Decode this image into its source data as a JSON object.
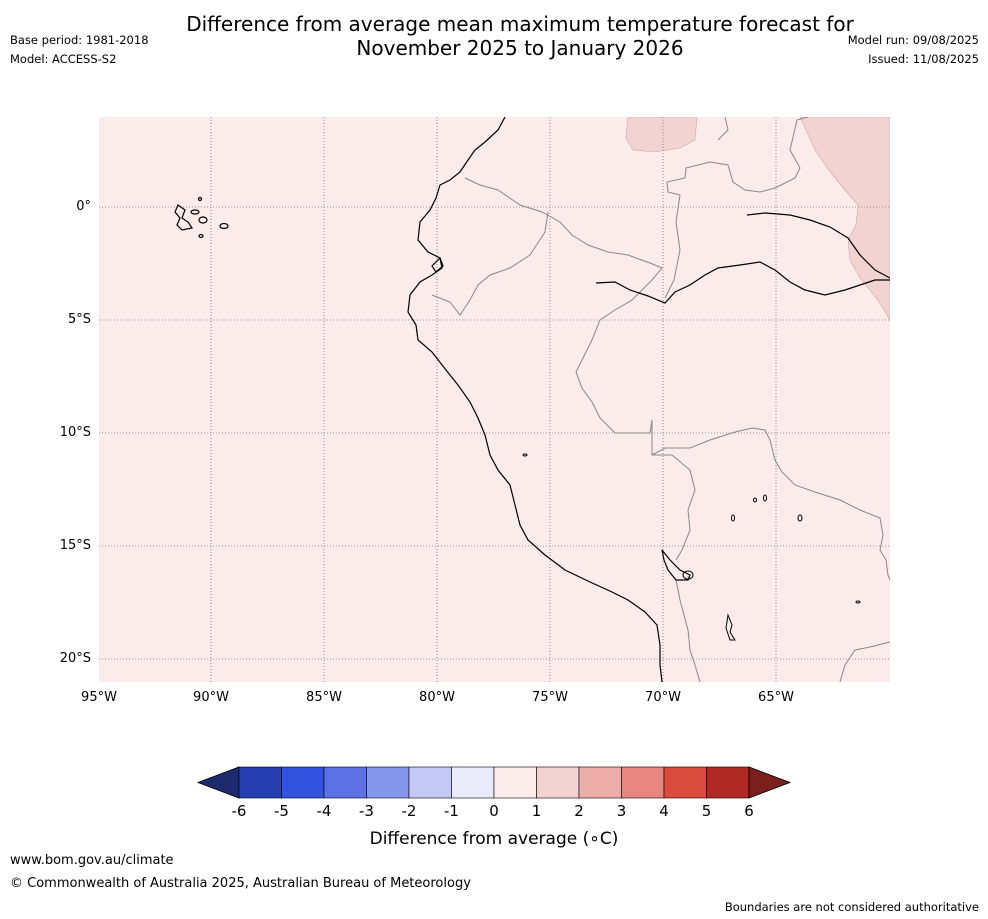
{
  "header": {
    "title_line1": "Difference from average mean maximum temperature forecast for",
    "title_line2": "November 2025 to January 2026",
    "base_period": "Base period: 1981-2018",
    "model": "Model: ACCESS-S2",
    "model_run": "Model run: 09/08/2025",
    "issued": "Issued: 11/08/2025"
  },
  "map": {
    "region": "Western South America (Ecuador, Peru, western Brazil, Bolivia)",
    "background_anomaly_bin": "0 to 1",
    "highlighted_anomaly_bin": "1 to 2",
    "latitude_labels": [
      "0°",
      "5°S",
      "10°S",
      "15°S",
      "20°S"
    ],
    "longitude_labels": [
      "95°W",
      "90°W",
      "85°W",
      "80°W",
      "75°W",
      "70°W",
      "65°W"
    ]
  },
  "colorbar": {
    "title": "Difference from average (∘C)",
    "ticks": [
      "-6",
      "-5",
      "-4",
      "-3",
      "-2",
      "-1",
      "0",
      "1",
      "2",
      "3",
      "4",
      "5",
      "6"
    ],
    "colors": {
      "lt_-6": "#1e2a6e",
      "-6_-5": "#263fb0",
      "-5_-4": "#3352e0",
      "-4_-3": "#5b71e4",
      "-3_-2": "#8497ec",
      "-2_-1": "#c3c9f4",
      "-1_0": "#e9ebfb",
      "0_1": "#fbebea",
      "1_2": "#f2d3d1",
      "2_3": "#eeaca9",
      "3_4": "#e8877f",
      "4_5": "#d94b3c",
      "5_6": "#ae2a22",
      "gt_6": "#7a1f1c"
    }
  },
  "footer": {
    "website": "www.bom.gov.au/climate",
    "copyright": "© Commonwealth of Australia 2025, Australian Bureau of Meteorology",
    "disclaimer": "Boundaries are not considered authoritative"
  }
}
